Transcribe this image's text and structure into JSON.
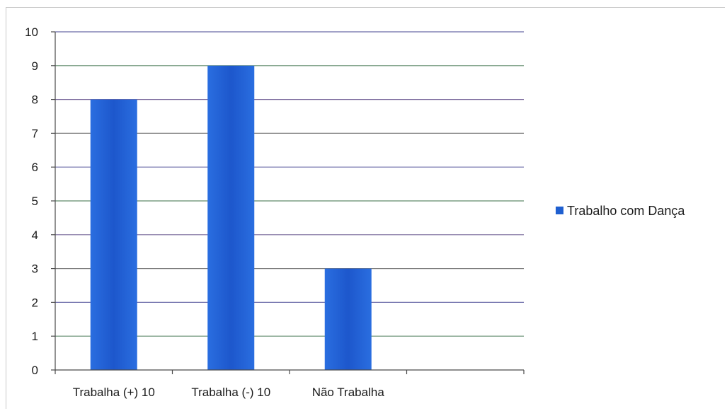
{
  "chart_data": {
    "type": "bar",
    "categories": [
      "Trabalha (+) 10",
      "Trabalha (-) 10",
      "Não Trabalha"
    ],
    "series": [
      {
        "name": "Trabalho com Dança",
        "values": [
          8,
          9,
          3
        ],
        "color": "#1f5fd0"
      }
    ],
    "ylim": [
      0,
      10
    ],
    "yticks": [
      0,
      1,
      2,
      3,
      4,
      5,
      6,
      7,
      8,
      9,
      10
    ],
    "grid": true,
    "legend_position": "right"
  }
}
